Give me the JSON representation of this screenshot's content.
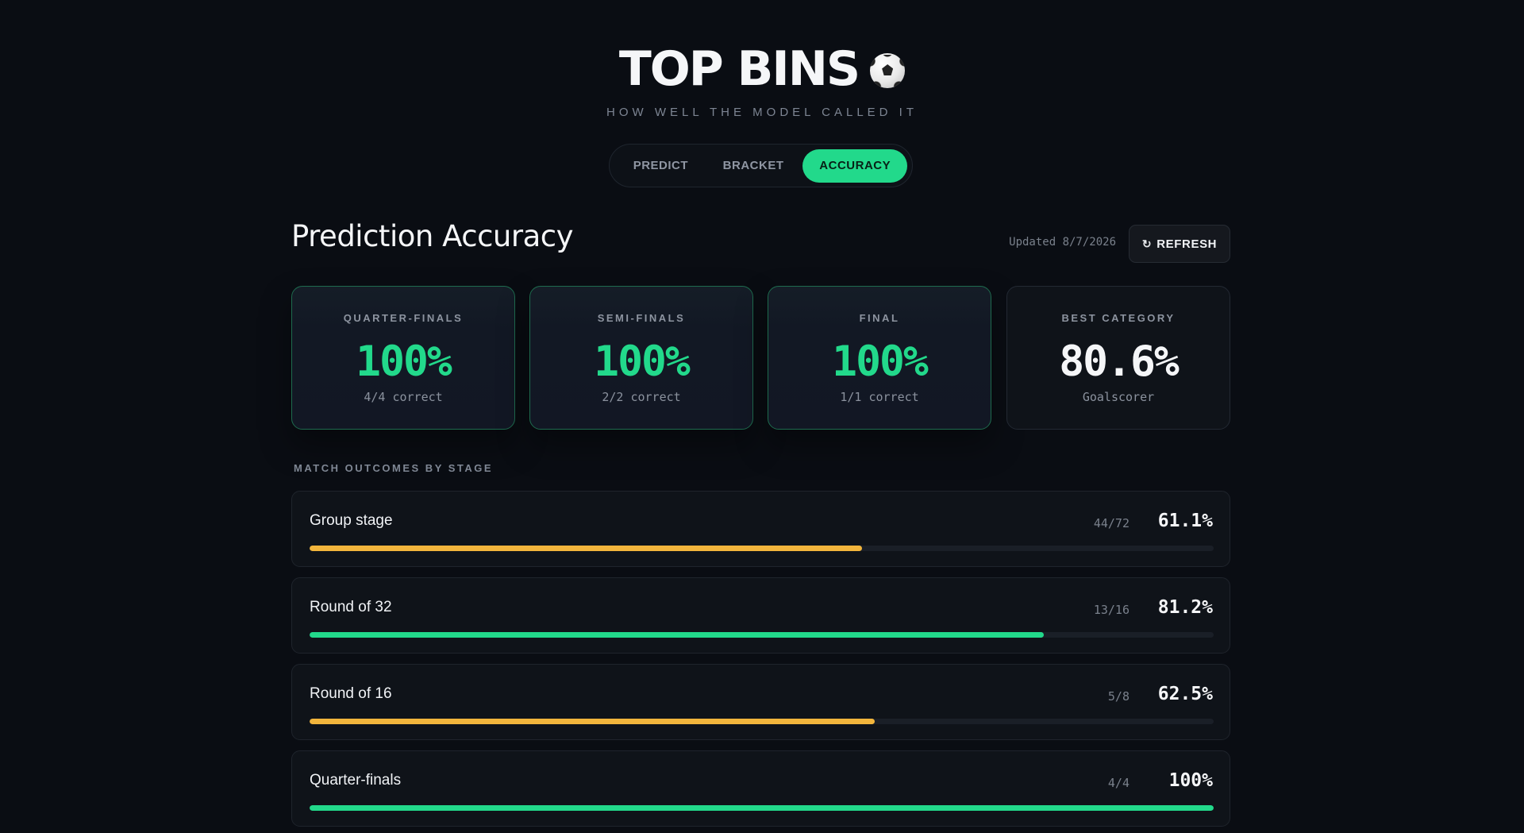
{
  "brand": {
    "title": "TOP BINS",
    "icon": "soccer-ball-icon",
    "subtitle": "HOW WELL THE MODEL CALLED IT"
  },
  "tabs": [
    {
      "label": "PREDICT",
      "active": false
    },
    {
      "label": "BRACKET",
      "active": false
    },
    {
      "label": "ACCURACY",
      "active": true
    }
  ],
  "header": {
    "title": "Prediction Accuracy",
    "updated": "Updated 8/7/2026",
    "refresh_label": "REFRESH",
    "refresh_icon": "↻"
  },
  "cards": [
    {
      "label": "QUARTER-FINALS",
      "value": "100%",
      "sub": "4/4 correct"
    },
    {
      "label": "SEMI-FINALS",
      "value": "100%",
      "sub": "2/2 correct"
    },
    {
      "label": "FINAL",
      "value": "100%",
      "sub": "1/1 correct"
    },
    {
      "label": "BEST CATEGORY",
      "value": "80.6%",
      "sub": "Goalscorer"
    }
  ],
  "stages": {
    "heading": "MATCH OUTCOMES BY STAGE",
    "rows": [
      {
        "name": "Group stage",
        "count": "44/72",
        "pct": "61.1%",
        "fraction": 0.611,
        "color": "#f2b53c"
      },
      {
        "name": "Round of 32",
        "count": "13/16",
        "pct": "81.2%",
        "fraction": 0.812,
        "color": "#22d98b"
      },
      {
        "name": "Round of 16",
        "count": "5/8",
        "pct": "62.5%",
        "fraction": 0.625,
        "color": "#f2b53c"
      },
      {
        "name": "Quarter-finals",
        "count": "4/4",
        "pct": "100%",
        "fraction": 1.0,
        "color": "#22d98b"
      }
    ]
  },
  "colors": {
    "accent": "#22d98b",
    "warning": "#f2b53c",
    "background": "#0a0d13"
  }
}
